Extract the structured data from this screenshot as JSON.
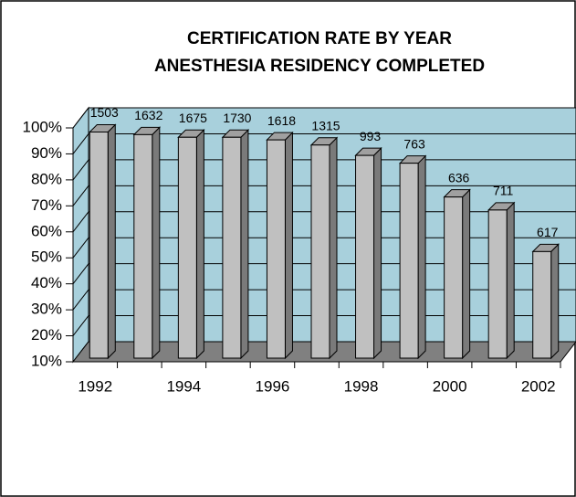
{
  "chart_data": {
    "type": "bar3d",
    "title": "CERTIFICATION RATE BY YEAR",
    "subtitle": "ANESTHESIA RESIDENCY COMPLETED",
    "categories": [
      "1992",
      null,
      "1994",
      null,
      "1996",
      null,
      "1998",
      null,
      "2000",
      null,
      "2002"
    ],
    "values": [
      97,
      96,
      95,
      95,
      94,
      92,
      88,
      85,
      72,
      67,
      51
    ],
    "counts": [
      1503,
      1632,
      1675,
      1730,
      1618,
      1315,
      993,
      763,
      636,
      711,
      617
    ],
    "color": "#c0c0c0",
    "ylim": [
      10,
      100
    ],
    "yticks": [
      {
        "value": 10,
        "label": "10%"
      },
      {
        "value": 20,
        "label": "20%"
      },
      {
        "value": 30,
        "label": "30%"
      },
      {
        "value": 40,
        "label": "40%"
      },
      {
        "value": 50,
        "label": "50%"
      },
      {
        "value": 60,
        "label": "60%"
      },
      {
        "value": 70,
        "label": "70%"
      },
      {
        "value": 80,
        "label": "80%"
      },
      {
        "value": 90,
        "label": "90%"
      },
      {
        "value": 100,
        "label": "100%"
      }
    ],
    "grid": true
  }
}
